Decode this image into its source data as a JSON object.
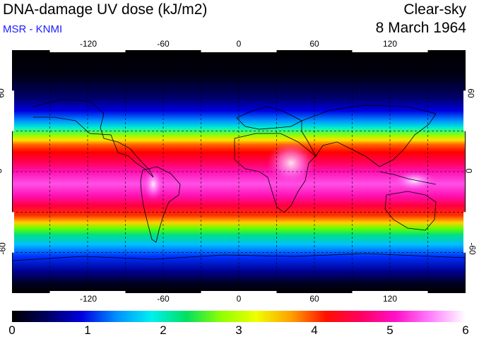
{
  "header": {
    "title": "DNA-damage UV dose (kJ/m2)",
    "credit": "MSR - KNMI",
    "mode": "Clear-sky",
    "date": "8 March 1964"
  },
  "axes": {
    "lon_ticks": [
      "-120",
      "-60",
      "0",
      "60",
      "120"
    ],
    "lat_ticks_left": [
      "60",
      "0",
      "-60"
    ],
    "lat_ticks_right": [
      "60",
      "0",
      "-60"
    ]
  },
  "colorbar": {
    "labels": [
      "0",
      "1",
      "2",
      "3",
      "4",
      "5",
      "6"
    ],
    "stops": [
      "#000000",
      "#000060",
      "#0000e0",
      "#0090ff",
      "#00f0f0",
      "#00e060",
      "#90ff00",
      "#f0ff00",
      "#ffa000",
      "#ff1000",
      "#ff0060",
      "#ff10c8",
      "#ff80ff",
      "#ffffff"
    ]
  },
  "colors": {
    "credit": "#1a1aff",
    "coast": "#000000",
    "grid": "#000000"
  }
}
